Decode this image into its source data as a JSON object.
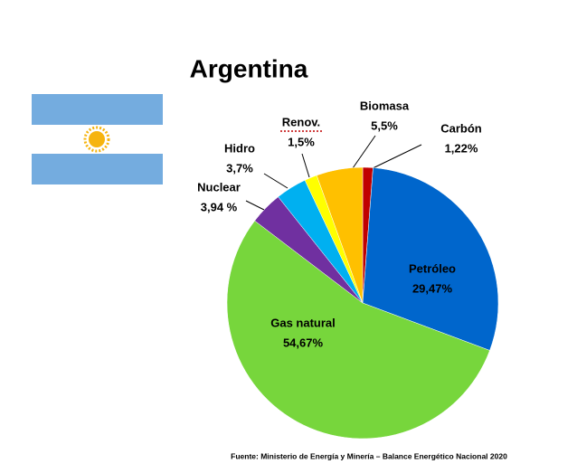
{
  "chart_data": {
    "type": "pie",
    "title": "Argentina",
    "categories": [
      "Carbón",
      "Petróleo",
      "Gas natural",
      "Nuclear",
      "Hidro",
      "Renov.",
      "Biomasa"
    ],
    "values": [
      1.22,
      29.47,
      54.67,
      3.94,
      3.7,
      1.5,
      5.5
    ],
    "value_labels": [
      "1,22%",
      "29,47%",
      "54,67%",
      "3,94 %",
      "3,7%",
      "1,5%",
      "5,5%"
    ],
    "colors": [
      "#c00000",
      "#0066cc",
      "#77d63c",
      "#7030a0",
      "#00b0f0",
      "#ffff00",
      "#ffc000"
    ],
    "source": "Fuente: Ministerio de Energía y Minería – Balance Energético Nacional 2020"
  }
}
